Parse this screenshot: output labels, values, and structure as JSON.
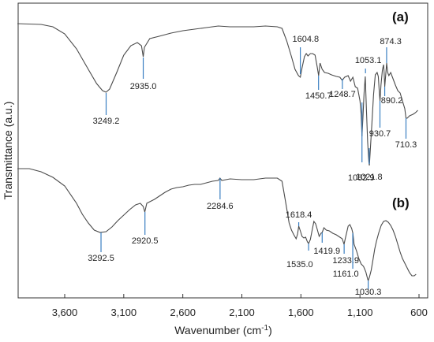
{
  "chart_data": {
    "type": "line",
    "xlabel_text": "Wavenumber (cm",
    "xlabel_sup": "-1",
    "xlabel_tail": ")",
    "ylabel": "Transmittance (a.u.)",
    "x_reversed": true,
    "xlim": [
      4000,
      580
    ],
    "xticks": [
      {
        "value": 3600,
        "label": "3,600"
      },
      {
        "value": 3100,
        "label": "3,100"
      },
      {
        "value": 2600,
        "label": "2,600"
      },
      {
        "value": 2100,
        "label": "2,100"
      },
      {
        "value": 1600,
        "label": "1,600"
      },
      {
        "value": 1100,
        "label": "1,100"
      },
      {
        "value": 600,
        "label": "600"
      }
    ],
    "series": [
      {
        "name": "(a)",
        "peaks": [
          {
            "label": "3249.2",
            "x": 3249.2
          },
          {
            "label": "2935.0",
            "x": 2935.0
          },
          {
            "label": "1604.8",
            "x": 1604.8
          },
          {
            "label": "1450.7",
            "x": 1450.7
          },
          {
            "label": "1248.7",
            "x": 1248.7
          },
          {
            "label": "1053.1",
            "x": 1053.1
          },
          {
            "label": "1082.9",
            "x": 1082.9
          },
          {
            "label": "1021.8",
            "x": 1021.8
          },
          {
            "label": "874.3",
            "x": 874.3
          },
          {
            "label": "890.2",
            "x": 890.2
          },
          {
            "label": "930.7",
            "x": 930.7
          },
          {
            "label": "710.3",
            "x": 710.3
          }
        ]
      },
      {
        "name": "(b)",
        "peaks": [
          {
            "label": "3292.5",
            "x": 3292.5
          },
          {
            "label": "2920.5",
            "x": 2920.5
          },
          {
            "label": "2284.6",
            "x": 2284.6
          },
          {
            "label": "1618.4",
            "x": 1618.4
          },
          {
            "label": "1535.0",
            "x": 1535.0
          },
          {
            "label": "1419.9",
            "x": 1419.9
          },
          {
            "label": "1233.9",
            "x": 1233.9
          },
          {
            "label": "1161.0",
            "x": 1161.0
          },
          {
            "label": "1030.3",
            "x": 1030.3
          }
        ]
      }
    ]
  }
}
